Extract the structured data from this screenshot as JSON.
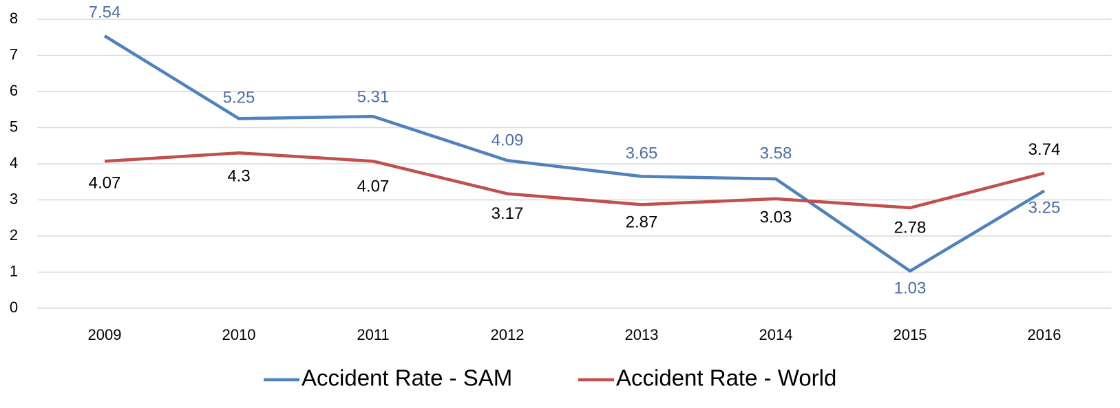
{
  "chart_data": {
    "type": "line",
    "categories": [
      "2009",
      "2010",
      "2011",
      "2012",
      "2013",
      "2014",
      "2015",
      "2016"
    ],
    "series": [
      {
        "name": "Accident Rate - SAM",
        "color": "#4f81bd",
        "label_color": "#4a6ea5",
        "values": [
          7.54,
          5.25,
          5.31,
          4.09,
          3.65,
          3.58,
          1.03,
          3.25
        ]
      },
      {
        "name": "Accident Rate - World",
        "color": "#c0504d",
        "label_color": "#000000",
        "values": [
          4.07,
          4.3,
          4.07,
          3.17,
          2.87,
          3.03,
          2.78,
          3.74
        ]
      }
    ],
    "ylim": [
      0,
      8
    ],
    "yticks": [
      0,
      1,
      2,
      3,
      4,
      5,
      6,
      7,
      8
    ],
    "grid": true,
    "legend": "bottom"
  }
}
